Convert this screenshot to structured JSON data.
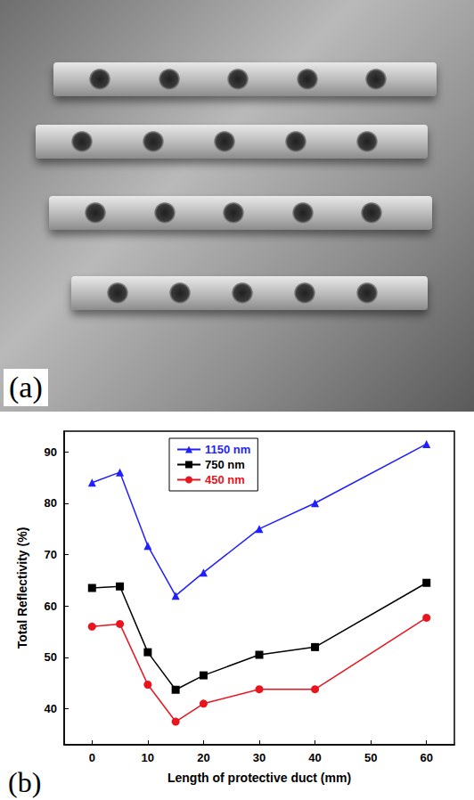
{
  "photo": {
    "label": "(a)"
  },
  "chart_data": {
    "type": "line",
    "x_label": "Length of protective duct (mm)",
    "y_label": "Total Reflectivity (%)",
    "annotations": [
      "(b)"
    ],
    "x": [
      0,
      5,
      10,
      15,
      20,
      30,
      40,
      60
    ],
    "series": [
      {
        "name": "1150 nm",
        "color": "#1f1fff",
        "marker": "triangle",
        "values": [
          84,
          86,
          71.7,
          62,
          66.5,
          75,
          80,
          91.5
        ]
      },
      {
        "name": "750 nm",
        "color": "#000000",
        "marker": "square",
        "values": [
          63.5,
          63.8,
          51,
          43.7,
          46.5,
          50.5,
          52,
          64.5
        ]
      },
      {
        "name": "450 nm",
        "color": "#e8141e",
        "marker": "circle",
        "values": [
          56,
          56.5,
          44.7,
          37.5,
          41,
          43.8,
          43.8,
          57.7
        ]
      }
    ],
    "xlim": [
      -5,
      65
    ],
    "xticks": [
      0,
      10,
      20,
      30,
      40,
      50,
      60
    ],
    "ylim": [
      33,
      94
    ],
    "yticks": [
      40,
      50,
      60,
      70,
      80,
      90
    ],
    "grid": false,
    "legend": "top"
  }
}
